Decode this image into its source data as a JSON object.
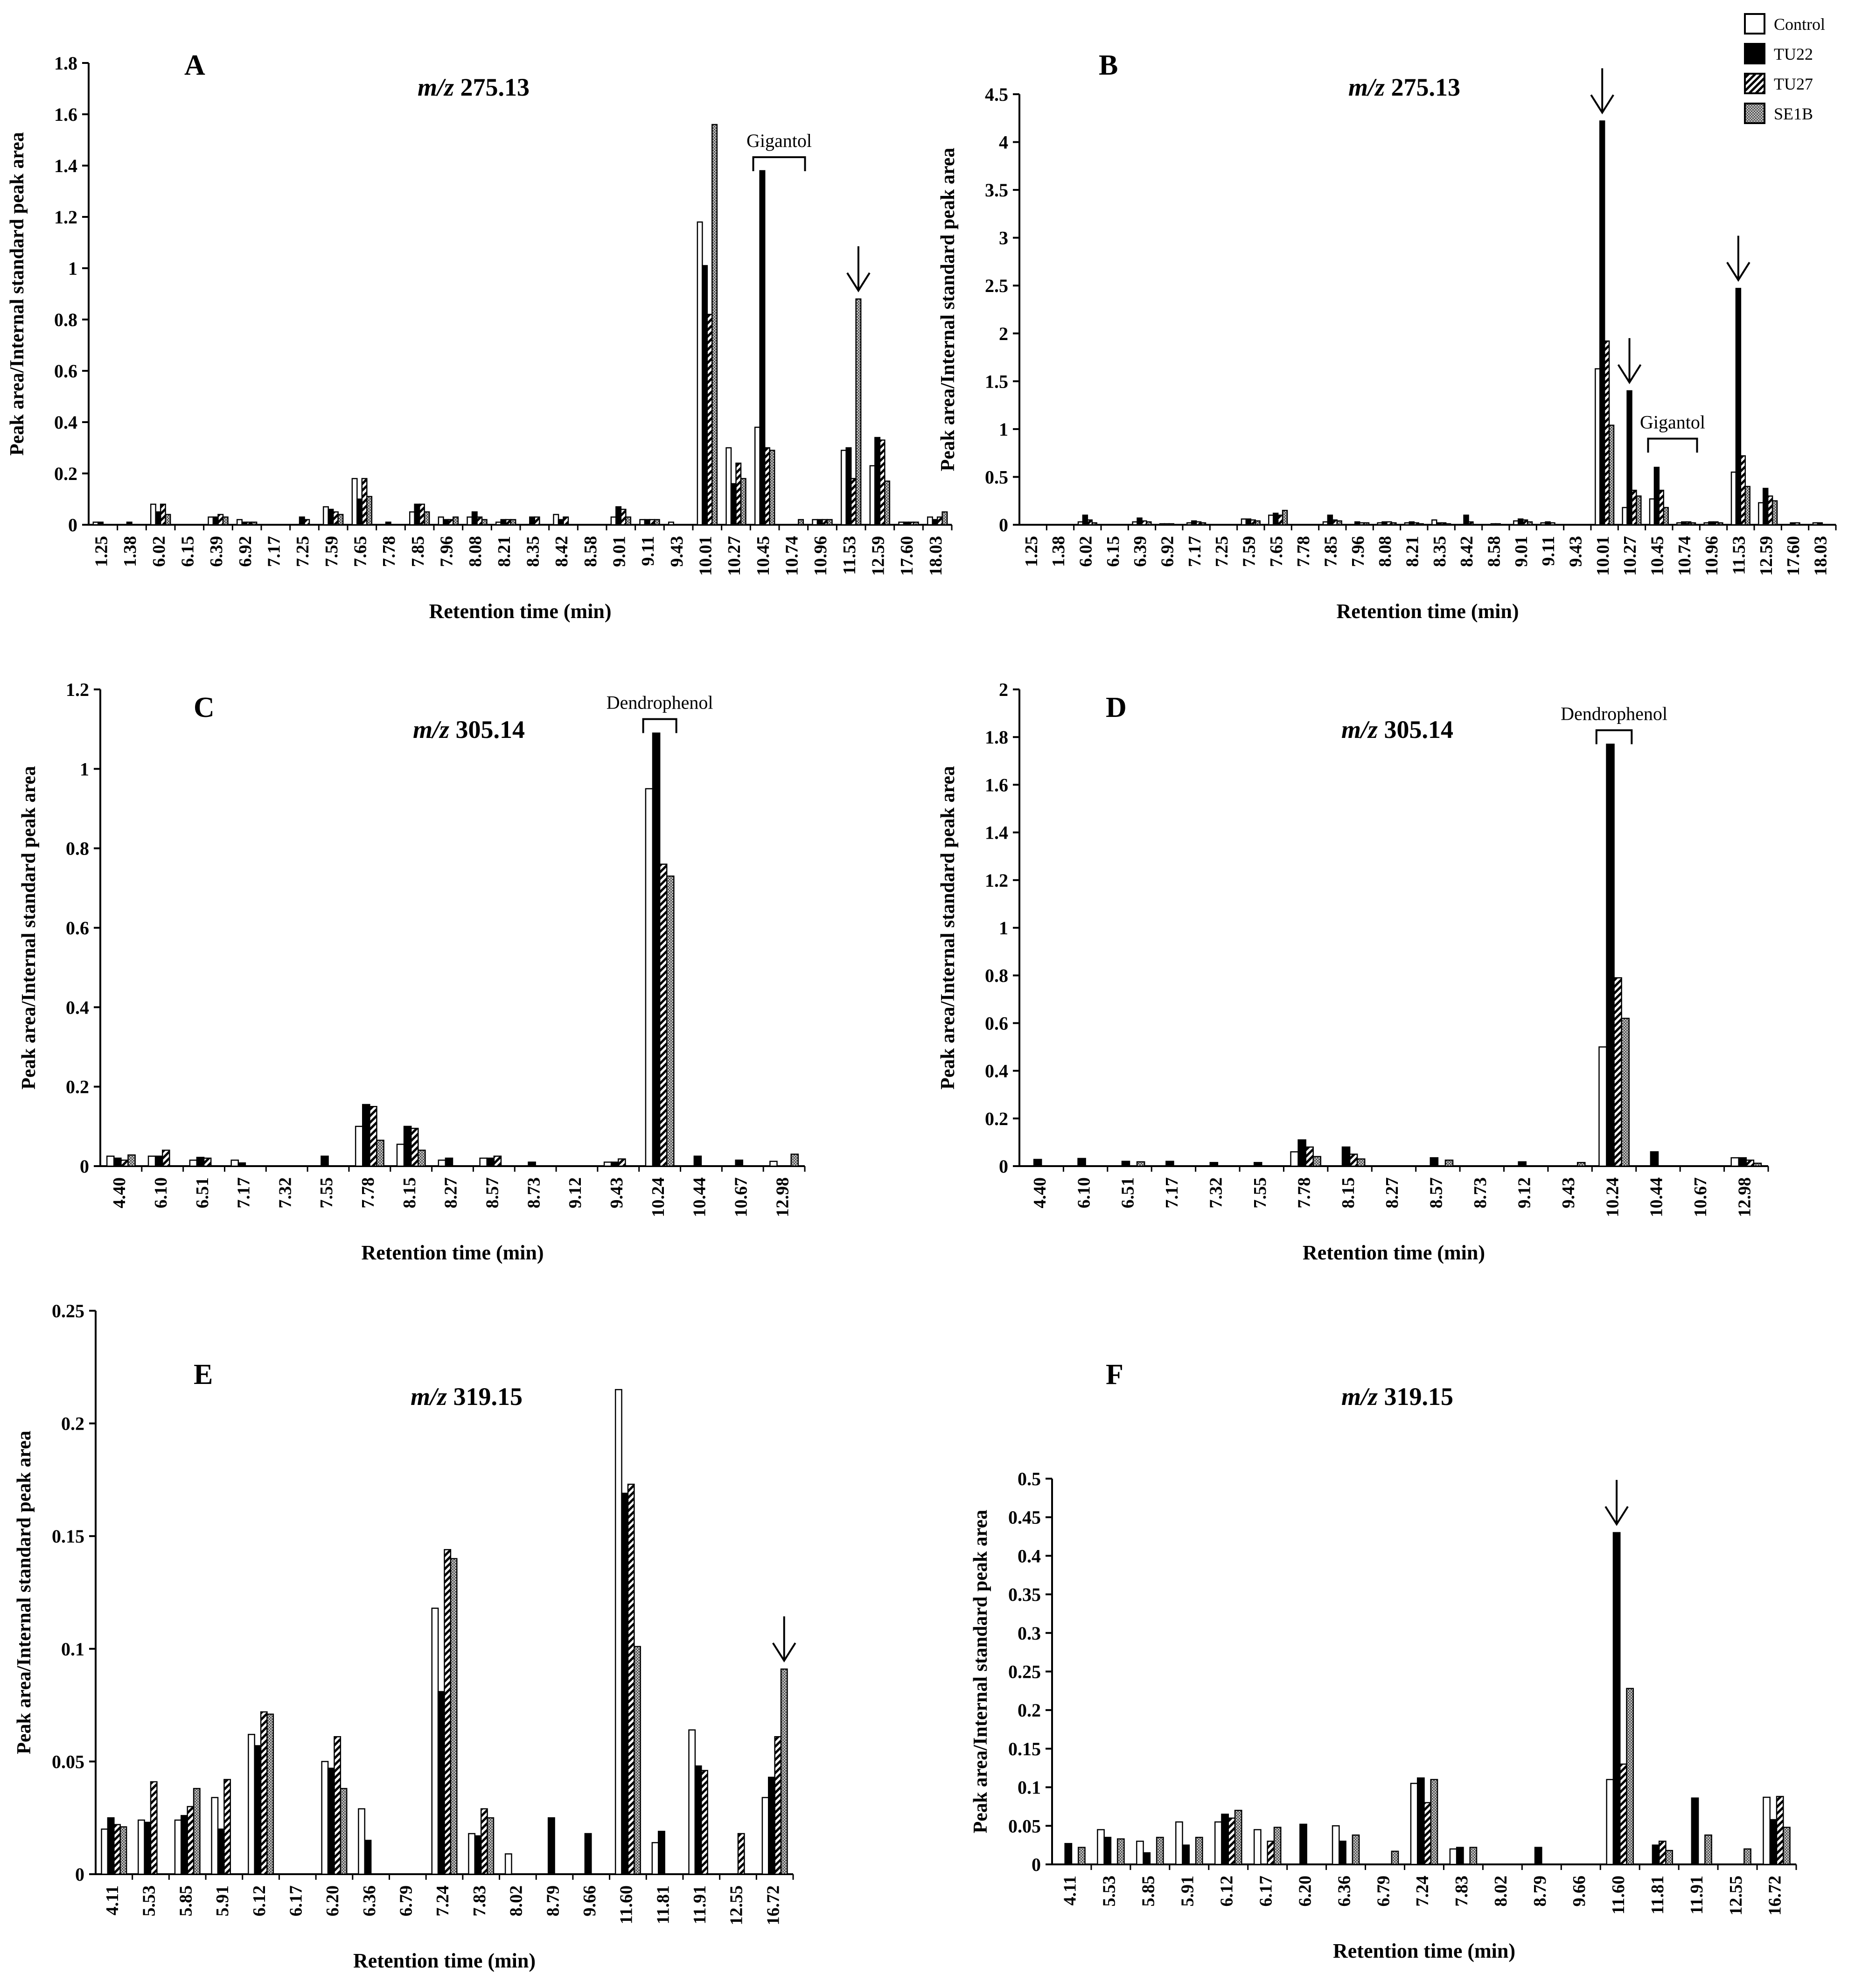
{
  "legend": {
    "items": [
      {
        "label": "Control",
        "pattern": "empty"
      },
      {
        "label": "TU22",
        "pattern": "solid"
      },
      {
        "label": "TU27",
        "pattern": "hatch"
      },
      {
        "label": "SE1B",
        "pattern": "dots"
      }
    ]
  },
  "chart_data": [
    {
      "panel": "A",
      "type": "bar",
      "mz_prefix": "m/z",
      "mz_value": "275.13",
      "xlabel": "Retention time (min)",
      "ylabel": "Peak area/Internal standard peak area",
      "ylim": [
        0,
        1.8
      ],
      "yticks": [
        "0",
        "0.2",
        "0.4",
        "0.6",
        "0.8",
        "1",
        "1.2",
        "1.4",
        "1.6",
        "1.8"
      ],
      "categories": [
        "1.25",
        "1.38",
        "6.02",
        "6.15",
        "6.39",
        "6.92",
        "7.17",
        "7.25",
        "7.59",
        "7.65",
        "7.78",
        "7.85",
        "7.96",
        "8.08",
        "8.21",
        "8.35",
        "8.42",
        "8.58",
        "9.01",
        "9.11",
        "9.43",
        "10.01",
        "10.27",
        "10.45",
        "10.74",
        "10.96",
        "11.53",
        "12.59",
        "17.60",
        "18.03"
      ],
      "series": [
        {
          "name": "Control",
          "values": [
            0.01,
            0,
            0.08,
            0,
            0.03,
            0.02,
            0,
            0,
            0.07,
            0.18,
            0,
            0.05,
            0.03,
            0.03,
            0.01,
            0,
            0.04,
            0,
            0.03,
            0.02,
            0.01,
            1.18,
            0.3,
            0.38,
            0,
            0.02,
            0.29,
            0.23,
            0.01,
            0.03
          ]
        },
        {
          "name": "TU22",
          "values": [
            0.01,
            0.01,
            0.05,
            0,
            0.03,
            0.01,
            0,
            0.03,
            0.06,
            0.1,
            0.01,
            0.08,
            0.02,
            0.05,
            0.02,
            0.03,
            0.02,
            0,
            0.07,
            0.02,
            0,
            1.01,
            0.16,
            1.38,
            0,
            0.02,
            0.3,
            0.34,
            0.01,
            0.02
          ]
        },
        {
          "name": "TU27",
          "values": [
            0,
            0,
            0.08,
            0,
            0.04,
            0.01,
            0,
            0.02,
            0.05,
            0.18,
            0,
            0.08,
            0.02,
            0.03,
            0.02,
            0.03,
            0.03,
            0,
            0.06,
            0.02,
            0,
            0.82,
            0.24,
            0.3,
            0,
            0.02,
            0.18,
            0.33,
            0.01,
            0.03
          ]
        },
        {
          "name": "SE1B",
          "values": [
            0,
            0,
            0.04,
            0,
            0.03,
            0.01,
            0,
            0,
            0.04,
            0.11,
            0,
            0.05,
            0.03,
            0.02,
            0.02,
            0,
            0,
            0,
            0.03,
            0.02,
            0,
            1.56,
            0.18,
            0.29,
            0.02,
            0.02,
            0.88,
            0.17,
            0.01,
            0.05
          ]
        }
      ],
      "annotations": [
        {
          "kind": "bracket",
          "text": "Gigantol",
          "categories": [
            "10.45",
            "10.74"
          ]
        },
        {
          "kind": "arrow",
          "category": "11.53",
          "series": "SE1B"
        }
      ]
    },
    {
      "panel": "B",
      "type": "bar",
      "mz_prefix": "m/z",
      "mz_value": "275.13",
      "xlabel": "Retention time (min)",
      "ylabel": "Peak area/Internal standard peak area",
      "ylim": [
        0,
        4.5
      ],
      "yticks": [
        "0",
        "0.5",
        "1",
        "1.5",
        "2",
        "2.5",
        "3",
        "3.5",
        "4",
        "4.5"
      ],
      "categories": [
        "1.25",
        "1.38",
        "6.02",
        "6.15",
        "6.39",
        "6.92",
        "7.17",
        "7.25",
        "7.59",
        "7.65",
        "7.78",
        "7.85",
        "7.96",
        "8.08",
        "8.21",
        "8.35",
        "8.42",
        "8.58",
        "9.01",
        "9.11",
        "9.43",
        "10.01",
        "10.27",
        "10.45",
        "10.74",
        "10.96",
        "11.53",
        "12.59",
        "17.60",
        "18.03"
      ],
      "series": [
        {
          "name": "Control",
          "values": [
            0,
            0,
            0.03,
            0,
            0.03,
            0.01,
            0.02,
            0,
            0.06,
            0.1,
            0,
            0.03,
            0,
            0.02,
            0.02,
            0.05,
            0,
            0,
            0.04,
            0.02,
            0,
            1.63,
            0.18,
            0.27,
            0.02,
            0.02,
            0.55,
            0.23,
            0,
            0.02
          ]
        },
        {
          "name": "TU22",
          "values": [
            0,
            0,
            0.1,
            0,
            0.07,
            0.01,
            0.04,
            0,
            0.06,
            0.12,
            0,
            0.1,
            0.03,
            0.03,
            0.03,
            0.02,
            0.1,
            0.01,
            0.06,
            0.03,
            0,
            4.22,
            1.4,
            0.6,
            0.03,
            0.03,
            2.47,
            0.38,
            0.02,
            0.02
          ]
        },
        {
          "name": "TU27",
          "values": [
            0,
            0,
            0.05,
            0,
            0.04,
            0.01,
            0.03,
            0,
            0.05,
            0.1,
            0,
            0.05,
            0.02,
            0.03,
            0.02,
            0.02,
            0.03,
            0.01,
            0.05,
            0.02,
            0,
            1.92,
            0.36,
            0.36,
            0.03,
            0.03,
            0.72,
            0.3,
            0.02,
            0
          ]
        },
        {
          "name": "SE1B",
          "values": [
            0,
            0,
            0.02,
            0,
            0.03,
            0,
            0.02,
            0,
            0.04,
            0.15,
            0,
            0.04,
            0.02,
            0.02,
            0.01,
            0.01,
            0,
            0,
            0.03,
            0,
            0,
            1.04,
            0.3,
            0.18,
            0.02,
            0.02,
            0.4,
            0.25,
            0,
            0
          ]
        }
      ],
      "annotations": [
        {
          "kind": "arrow",
          "category": "10.01",
          "series": "TU22"
        },
        {
          "kind": "arrow",
          "category": "10.27",
          "series": "TU22"
        },
        {
          "kind": "arrow",
          "category": "11.53",
          "series": "TU22"
        },
        {
          "kind": "bracket",
          "text": "Gigantol",
          "categories": [
            "10.45",
            "10.74"
          ]
        }
      ]
    },
    {
      "panel": "C",
      "type": "bar",
      "mz_prefix": "m/z",
      "mz_value": "305.14",
      "xlabel": "Retention time (min)",
      "ylabel": "Peak area/Internal standard peak area",
      "ylim": [
        0,
        1.2
      ],
      "yticks": [
        "0",
        "0.2",
        "0.4",
        "0.6",
        "0.8",
        "1",
        "1.2"
      ],
      "categories": [
        "4.40",
        "6.10",
        "6.51",
        "7.17",
        "7.32",
        "7.55",
        "7.78",
        "8.15",
        "8.27",
        "8.57",
        "8.73",
        "9.12",
        "9.43",
        "10.24",
        "10.44",
        "10.67",
        "12.98"
      ],
      "series": [
        {
          "name": "Control",
          "values": [
            0.025,
            0.025,
            0.015,
            0.015,
            0,
            0,
            0.1,
            0.055,
            0.015,
            0.02,
            0,
            0,
            0.01,
            0.95,
            0,
            0,
            0.012
          ]
        },
        {
          "name": "TU22",
          "values": [
            0.02,
            0.025,
            0.022,
            0.008,
            0,
            0.025,
            0.155,
            0.1,
            0.02,
            0.02,
            0.01,
            0,
            0.01,
            1.09,
            0.025,
            0.015,
            0
          ]
        },
        {
          "name": "TU27",
          "values": [
            0.015,
            0.04,
            0.02,
            0,
            0,
            0,
            0.15,
            0.095,
            0,
            0.025,
            0,
            0,
            0.018,
            0.76,
            0,
            0,
            0
          ]
        },
        {
          "name": "SE1B",
          "values": [
            0.028,
            0,
            0,
            0,
            0,
            0,
            0.065,
            0.04,
            0,
            0,
            0,
            0,
            0,
            0.73,
            0,
            0,
            0.03
          ]
        }
      ],
      "annotations": [
        {
          "kind": "bracket",
          "text": "Dendrophenol",
          "categories": [
            "10.24"
          ]
        }
      ]
    },
    {
      "panel": "D",
      "type": "bar",
      "mz_prefix": "m/z",
      "mz_value": "305.14",
      "xlabel": "Retention time (min)",
      "ylabel": "Peak area/Internal standard peak area",
      "ylim": [
        0,
        2
      ],
      "yticks": [
        "0",
        "0.2",
        "0.4",
        "0.6",
        "0.8",
        "1",
        "1.2",
        "1.4",
        "1.6",
        "1.8",
        "2"
      ],
      "categories": [
        "4.40",
        "6.10",
        "6.51",
        "7.17",
        "7.32",
        "7.55",
        "7.78",
        "8.15",
        "8.27",
        "8.57",
        "8.73",
        "9.12",
        "9.43",
        "10.24",
        "10.44",
        "10.67",
        "12.98"
      ],
      "series": [
        {
          "name": "Control",
          "values": [
            0,
            0,
            0,
            0,
            0,
            0,
            0.06,
            0,
            0,
            0,
            0,
            0,
            0,
            0.5,
            0,
            0,
            0.035
          ]
        },
        {
          "name": "TU22",
          "values": [
            0.028,
            0.032,
            0.02,
            0.02,
            0.015,
            0.015,
            0.11,
            0.08,
            0,
            0.035,
            0,
            0.018,
            0,
            1.77,
            0.06,
            0,
            0.035
          ]
        },
        {
          "name": "TU27",
          "values": [
            0,
            0,
            0,
            0,
            0,
            0,
            0.08,
            0.05,
            0,
            0,
            0,
            0,
            0,
            0.79,
            0,
            0,
            0.025
          ]
        },
        {
          "name": "SE1B",
          "values": [
            0,
            0,
            0.018,
            0,
            0,
            0,
            0.04,
            0.03,
            0,
            0.025,
            0,
            0,
            0.015,
            0.62,
            0,
            0,
            0.012
          ]
        }
      ],
      "annotations": [
        {
          "kind": "bracket",
          "text": "Dendrophenol",
          "categories": [
            "10.24"
          ]
        }
      ]
    },
    {
      "panel": "E",
      "type": "bar",
      "mz_prefix": "m/z",
      "mz_value": "319.15",
      "xlabel": "Retention time (min)",
      "ylabel": "Peak area/Internal standard peak area",
      "ylim": [
        0,
        0.25
      ],
      "yticks": [
        "0",
        "0.05",
        "0.1",
        "0.15",
        "0.2",
        "0.25"
      ],
      "categories": [
        "4.11",
        "5.53",
        "5.85",
        "5.91",
        "6.12",
        "6.17",
        "6.20",
        "6.36",
        "6.79",
        "7.24",
        "7.83",
        "8.02",
        "8.79",
        "9.66",
        "11.60",
        "11.81",
        "11.91",
        "12.55",
        "16.72"
      ],
      "series": [
        {
          "name": "Control",
          "values": [
            0.02,
            0.024,
            0.024,
            0.034,
            0.062,
            0,
            0.05,
            0.029,
            0,
            0.118,
            0.018,
            0.009,
            0,
            0,
            0.215,
            0.014,
            0.064,
            0,
            0.034
          ]
        },
        {
          "name": "TU22",
          "values": [
            0.025,
            0.023,
            0.026,
            0.02,
            0.057,
            0,
            0.047,
            0.015,
            0,
            0.081,
            0.017,
            0,
            0.025,
            0.018,
            0.169,
            0.019,
            0.048,
            0,
            0.043
          ]
        },
        {
          "name": "TU27",
          "values": [
            0.022,
            0.041,
            0.03,
            0.042,
            0.072,
            0,
            0.061,
            0,
            0,
            0.144,
            0.029,
            0,
            0,
            0,
            0.173,
            0,
            0.046,
            0.018,
            0.061
          ]
        },
        {
          "name": "SE1B",
          "values": [
            0.021,
            0,
            0.038,
            0,
            0.071,
            0,
            0.038,
            0,
            0,
            0.14,
            0.025,
            0,
            0,
            0,
            0.101,
            0,
            0,
            0,
            0.091
          ]
        }
      ],
      "annotations": [
        {
          "kind": "arrow",
          "category": "16.72",
          "series": "SE1B"
        }
      ]
    },
    {
      "panel": "F",
      "type": "bar",
      "mz_prefix": "m/z",
      "mz_value": "319.15",
      "xlabel": "Retention time (min)",
      "ylabel": "Peak area/Internal standard peak area",
      "ylim": [
        0,
        0.5
      ],
      "yticks": [
        "0",
        "0.05",
        "0.1",
        "0.15",
        "0.2",
        "0.25",
        "0.3",
        "0.35",
        "0.4",
        "0.45",
        "0.5"
      ],
      "categories": [
        "4.11",
        "5.53",
        "5.85",
        "5.91",
        "6.12",
        "6.17",
        "6.20",
        "6.36",
        "6.79",
        "7.24",
        "7.83",
        "8.02",
        "8.79",
        "9.66",
        "11.60",
        "11.81",
        "11.91",
        "12.55",
        "16.72"
      ],
      "series": [
        {
          "name": "Control",
          "values": [
            0,
            0.045,
            0.03,
            0.055,
            0.055,
            0.045,
            0,
            0.05,
            0,
            0.105,
            0.02,
            0,
            0,
            0,
            0.11,
            0,
            0,
            0,
            0.087
          ]
        },
        {
          "name": "TU22",
          "values": [
            0.027,
            0.035,
            0.015,
            0.025,
            0.065,
            0,
            0.052,
            0.03,
            0,
            0.112,
            0.022,
            0,
            0.022,
            0,
            0.43,
            0.025,
            0.086,
            0,
            0.058
          ]
        },
        {
          "name": "TU27",
          "values": [
            0,
            0,
            0,
            0,
            0.06,
            0.03,
            0,
            0,
            0,
            0.08,
            0,
            0,
            0,
            0,
            0.13,
            0.03,
            0,
            0,
            0.088
          ]
        },
        {
          "name": "SE1B",
          "values": [
            0.022,
            0.033,
            0.035,
            0.035,
            0.07,
            0.048,
            0,
            0.038,
            0.017,
            0.11,
            0.022,
            0,
            0,
            0,
            0.228,
            0.018,
            0.038,
            0.02,
            0.048
          ]
        }
      ],
      "annotations": [
        {
          "kind": "arrow",
          "category": "11.60",
          "series": "TU22"
        }
      ]
    }
  ]
}
